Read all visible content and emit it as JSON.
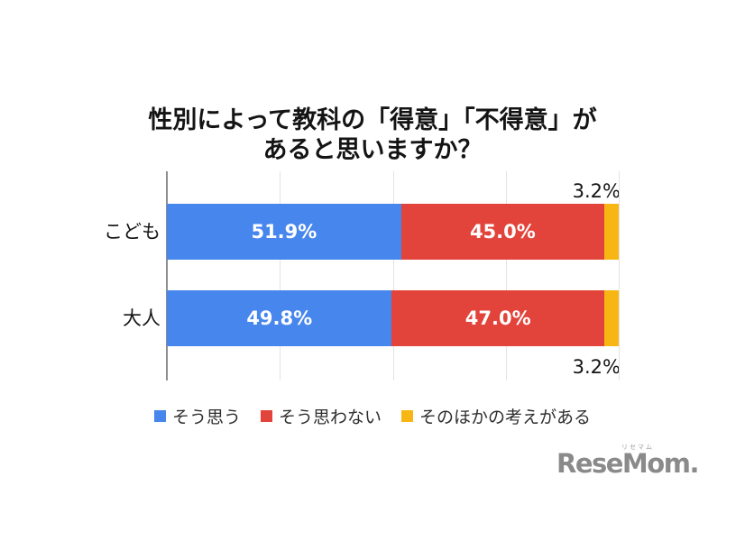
{
  "title": {
    "line1": "性別によって教科の「得意」「不得意」が",
    "line2": "あると思いますか？"
  },
  "chart_data": {
    "type": "bar",
    "orientation": "horizontal",
    "stacked": true,
    "title": "性別によって教科の「得意」「不得意」があると思いますか？",
    "categories": [
      "こども",
      "大人"
    ],
    "series": [
      {
        "name": "そう思う",
        "color": "#4786EC",
        "values": [
          51.9,
          49.8
        ]
      },
      {
        "name": "そう思わない",
        "color": "#E2433A",
        "values": [
          45.0,
          47.0
        ]
      },
      {
        "name": "そのほかの考えがある",
        "color": "#F7B614",
        "values": [
          3.2,
          3.2
        ]
      }
    ],
    "labels": [
      [
        "51.9%",
        "45.0%",
        "3.2%"
      ],
      [
        "49.8%",
        "47.0%",
        "3.2%"
      ]
    ],
    "xlim": [
      0,
      100
    ],
    "gridlines": [
      25,
      50,
      75,
      100
    ],
    "grid": true,
    "legend_position": "bottom",
    "unit": "%"
  },
  "logo": {
    "text": "ReseMom",
    "dot": ".",
    "ruby": "リセマム"
  }
}
